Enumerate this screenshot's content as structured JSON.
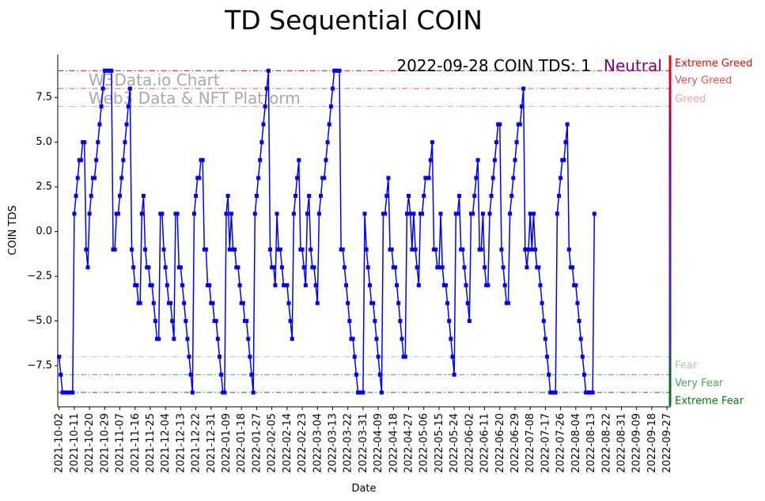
{
  "chart_data": {
    "type": "line",
    "title": "TD Sequential COIN",
    "xlabel": "Date",
    "ylabel": "COIN TDS",
    "ylim": [
      -9.8,
      9.9
    ],
    "yticks": [
      -7.5,
      -5.0,
      -2.5,
      0.0,
      2.5,
      5.0,
      7.5
    ],
    "ytick_labels": [
      "−7.5",
      "−5.0",
      "−2.5",
      "0.0",
      "2.5",
      "5.0",
      "7.5"
    ],
    "xlim_day": [
      -0.8,
      362.3
    ],
    "xtick_labels": [
      "2021-10-02",
      "2021-10-11",
      "2021-10-20",
      "2021-10-29",
      "2021-11-07",
      "2021-11-16",
      "2021-11-25",
      "2021-12-04",
      "2021-12-13",
      "2021-12-22",
      "2021-12-31",
      "2022-01-09",
      "2022-01-18",
      "2022-01-27",
      "2022-02-05",
      "2022-02-14",
      "2022-02-23",
      "2022-03-04",
      "2022-03-13",
      "2022-03-22",
      "2022-03-31",
      "2022-04-09",
      "2022-04-18",
      "2022-04-27",
      "2022-05-06",
      "2022-05-15",
      "2022-05-24",
      "2022-06-02",
      "2022-06-11",
      "2022-06-20",
      "2022-06-29",
      "2022-07-08",
      "2022-07-17",
      "2022-07-26",
      "2022-08-04",
      "2022-08-13",
      "2022-08-22",
      "2022-08-31",
      "2022-09-09",
      "2022-09-18",
      "2022-09-27"
    ],
    "xtick_day_step": 9,
    "series": [
      {
        "name": "COIN TDS",
        "color": "#0000ff",
        "start_date": "2021-10-02",
        "values": [
          -7,
          -8,
          -9,
          -9,
          -9,
          -9,
          -9,
          -9,
          -9,
          1,
          2,
          3,
          4,
          4,
          5,
          5,
          -1,
          -2,
          1,
          2,
          3,
          3,
          4,
          5,
          6,
          7,
          8,
          9,
          9,
          9,
          9,
          9,
          -1,
          -1,
          1,
          1,
          2,
          3,
          4,
          5,
          6,
          7,
          8,
          -1,
          -2,
          -3,
          -3,
          -4,
          -4,
          1,
          2,
          -1,
          -2,
          -2,
          -3,
          -3,
          -4,
          -5,
          -6,
          -6,
          1,
          1,
          -1,
          -2,
          -3,
          -4,
          -4,
          -5,
          -6,
          1,
          1,
          -2,
          -2,
          -3,
          -4,
          -5,
          -6,
          -7,
          -8,
          -9,
          1,
          2,
          3,
          3,
          4,
          4,
          -1,
          -1,
          -3,
          -3,
          -4,
          -4,
          -5,
          -5,
          -6,
          -7,
          -8,
          -9,
          -9,
          1,
          2,
          -1,
          1,
          -1,
          -1,
          -2,
          -2,
          -3,
          -4,
          -4,
          -5,
          -5,
          -6,
          -7,
          -8,
          -9,
          1,
          2,
          3,
          4,
          5,
          6,
          7,
          8,
          9,
          -1,
          -2,
          -2,
          -3,
          1,
          -1,
          -1,
          -2,
          -3,
          -3,
          -3,
          -4,
          -5,
          -6,
          1,
          2,
          3,
          4,
          -1,
          -1,
          -2,
          -3,
          1,
          2,
          -1,
          -2,
          -2,
          -3,
          -4,
          1,
          2,
          3,
          3,
          4,
          5,
          6,
          7,
          8,
          9,
          9,
          9,
          9,
          -1,
          -1,
          -2,
          -3,
          -4,
          -5,
          -6,
          -6,
          -7,
          -8,
          -9,
          -9,
          -9,
          -9,
          1,
          -1,
          -2,
          -3,
          -4,
          -4,
          -5,
          -6,
          -7,
          -8,
          -9,
          1,
          1,
          2,
          3,
          -1,
          -1,
          -2,
          -2,
          -3,
          -4,
          -5,
          -6,
          -7,
          -7,
          1,
          2,
          1,
          -1,
          1,
          -1,
          -2,
          -3,
          1,
          1,
          2,
          3,
          3,
          3,
          4,
          5,
          -1,
          -1,
          -2,
          -2,
          1,
          -2,
          -3,
          -3,
          -4,
          -5,
          -6,
          -7,
          -8,
          1,
          1,
          2,
          -1,
          -1,
          -2,
          -3,
          -4,
          -5,
          1,
          1,
          2,
          3,
          4,
          -1,
          -1,
          1,
          -2,
          -3,
          -3,
          1,
          2,
          3,
          4,
          5,
          6,
          6,
          -1,
          -2,
          -3,
          -4,
          -4,
          1,
          2,
          3,
          4,
          5,
          6,
          6,
          7,
          8,
          -1,
          -2,
          -1,
          1,
          -1,
          1,
          -1,
          -2,
          -2,
          -3,
          -4,
          -5,
          -6,
          -7,
          -8,
          -9,
          -9,
          -9,
          -9,
          1,
          2,
          3,
          4,
          4,
          5,
          6,
          -1,
          -2,
          -2,
          -3,
          -3,
          -4,
          -5,
          -6,
          -7,
          -8,
          -9,
          -9,
          -9,
          -9,
          -9,
          1
        ]
      }
    ],
    "reference_lines": [
      {
        "value": 9,
        "label": "Extreme Greed",
        "color": "#ff0000"
      },
      {
        "value": 8,
        "label": "Very Greed",
        "color": "#ff4b4b"
      },
      {
        "value": 7,
        "label": "Greed",
        "color": "#ffa0a0"
      },
      {
        "value": -7,
        "label": "Fear",
        "color": "#a0d2a0"
      },
      {
        "value": -8,
        "label": "Very Fear",
        "color": "#4bab4b"
      },
      {
        "value": -9,
        "label": "Extreme Fear",
        "color": "#008000"
      }
    ],
    "annotation": {
      "text": "2022-09-28 COIN TDS: 1",
      "status": "Neutral",
      "status_color": "#800080"
    },
    "watermark": [
      "W3Data.io Chart",
      "Web3 Data & NFT Platform"
    ]
  }
}
